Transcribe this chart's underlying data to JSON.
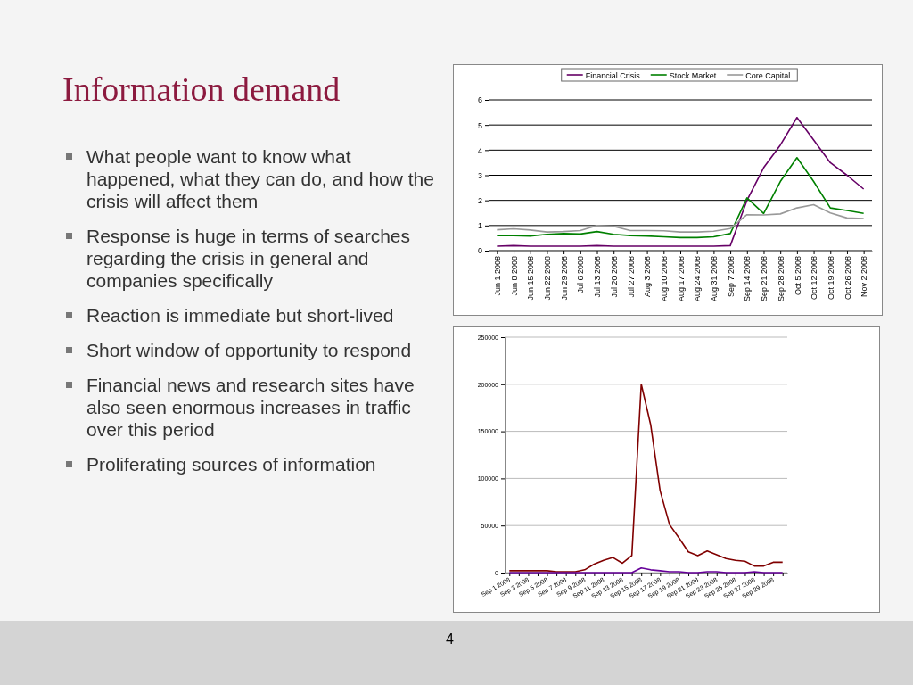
{
  "chart_data": [
    {
      "type": "other",
      "title": "Information demand",
      "annotations": [
        "What people want to know what happened, what they can do, and how the crisis will affect them",
        "Response is huge in terms of searches regarding the crisis in general and companies specifically",
        "Reaction is immediate but short-lived",
        "Short window of opportunity to respond",
        "Financial news and research sites have also seen enormous increases in traffic over this period",
        "Proliferating sources of information",
        "4"
      ]
    },
    {
      "type": "line",
      "categories": [
        "Jun 1 2008",
        "Jun 8 2008",
        "Jun 15 2008",
        "Jun 22 2008",
        "Jun 29 2008",
        "Jul 6 2008",
        "Jul 13 2008",
        "Jul 20 2008",
        "Jul 27 2008",
        "Aug 3 2008",
        "Aug 10 2008",
        "Aug 17 2008",
        "Aug 24 2008",
        "Aug 31 2008",
        "Sep 7 2008",
        "Sep 14 2008",
        "Sep 21 2008",
        "Sep 28 2008",
        "Oct 5 2008",
        "Oct 12 2008",
        "Oct 19 2008",
        "Oct 26 2008",
        "Nov 2 2008"
      ],
      "series": [
        {
          "name": "Financial Crisis",
          "color": "#660066",
          "values": [
            0.18,
            0.2,
            0.18,
            0.18,
            0.18,
            0.18,
            0.2,
            0.18,
            0.18,
            0.18,
            0.18,
            0.18,
            0.18,
            0.18,
            0.2,
            2.0,
            3.3,
            4.2,
            5.3,
            4.4,
            3.5,
            3.0,
            2.45
          ]
        },
        {
          "name": "Stock Market",
          "color": "#008000",
          "values": [
            0.6,
            0.6,
            0.58,
            0.65,
            0.68,
            0.66,
            0.76,
            0.65,
            0.6,
            0.58,
            0.55,
            0.52,
            0.52,
            0.55,
            0.68,
            2.1,
            1.48,
            2.75,
            3.7,
            2.75,
            1.7,
            1.6,
            1.48
          ]
        },
        {
          "name": "Core Capital",
          "color": "#999999",
          "values": [
            0.83,
            0.87,
            0.82,
            0.74,
            0.76,
            0.8,
            1.0,
            0.97,
            0.8,
            0.8,
            0.79,
            0.74,
            0.74,
            0.77,
            0.88,
            1.43,
            1.42,
            1.46,
            1.7,
            1.83,
            1.5,
            1.3,
            1.28
          ]
        }
      ],
      "ylim": [
        0,
        6
      ],
      "yticks": [
        0,
        1,
        2,
        3,
        4,
        5,
        6
      ],
      "grid": "y",
      "legend": "top"
    },
    {
      "type": "line",
      "categories": [
        "Sep 1 2008",
        null,
        "Sep 3 2008",
        null,
        "Sep 5 2008",
        null,
        "Sep 7 2008",
        null,
        "Sep 9 2008",
        null,
        "Sep 11 2008",
        null,
        "Sep 13 2008",
        null,
        "Sep 15 2008",
        null,
        "Sep 17 2008",
        null,
        "Sep 19 2008",
        null,
        "Sep 21 2008",
        null,
        "Sep 23 2008",
        null,
        "Sep 25 2008",
        null,
        "Sep 27 2008",
        null,
        "Sep 29 2008",
        null
      ],
      "series": [
        {
          "color": "#800000",
          "values": [
            2000,
            2000,
            2000,
            2000,
            2000,
            1000,
            1000,
            1000,
            3000,
            9000,
            13000,
            16000,
            10000,
            18000,
            200000,
            157000,
            87000,
            51000,
            37000,
            22000,
            18000,
            23000,
            19000,
            15000,
            13000,
            12000,
            7000,
            7000,
            11000,
            11000
          ]
        },
        {
          "color": "#660099",
          "values": [
            0,
            0,
            0,
            0,
            0,
            0,
            0,
            0,
            0,
            0,
            0,
            0,
            0,
            0,
            5000,
            3000,
            2000,
            1000,
            1000,
            0,
            0,
            1000,
            1000,
            0,
            0,
            0,
            1000,
            0,
            0,
            0
          ]
        }
      ],
      "ylim": [
        0,
        250000
      ],
      "yticks": [
        0,
        50000,
        100000,
        150000,
        200000,
        250000
      ],
      "grid": "y"
    }
  ]
}
